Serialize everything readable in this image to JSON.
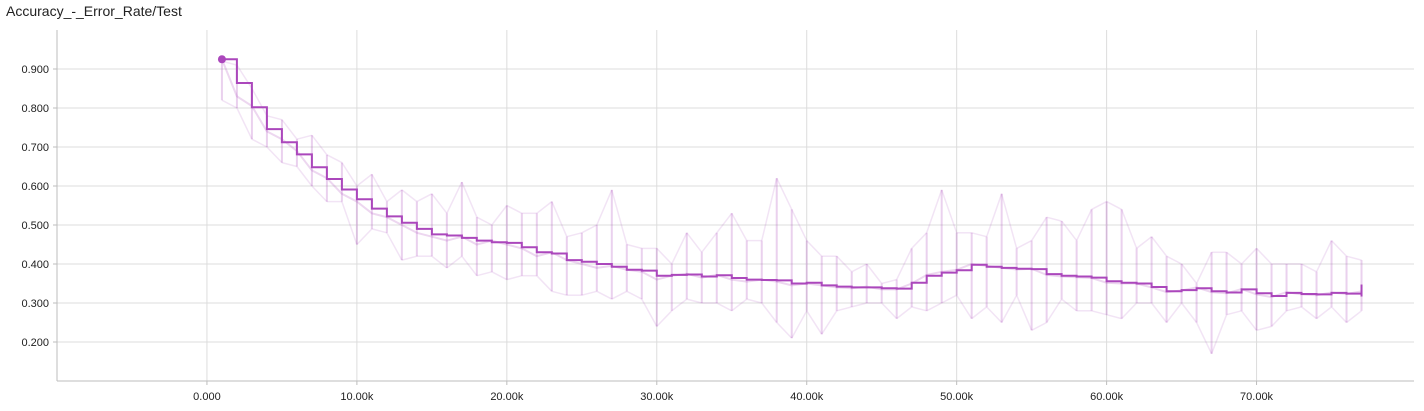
{
  "chart_data": {
    "type": "line",
    "title": "Accuracy_-_Error_Rate/Test",
    "xlim": [
      -10000,
      80500
    ],
    "ylim": [
      0.1,
      1.0
    ],
    "x_ticks": [
      0,
      10000,
      20000,
      30000,
      40000,
      50000,
      60000,
      70000
    ],
    "x_tick_labels": [
      "0.000",
      "10.00k",
      "20.00k",
      "30.00k",
      "40.00k",
      "50.00k",
      "60.00k",
      "70.00k"
    ],
    "y_ticks": [
      0.2,
      0.3,
      0.4,
      0.5,
      0.6,
      0.7,
      0.8,
      0.9
    ],
    "y_tick_labels": [
      "0.200",
      "0.300",
      "0.400",
      "0.500",
      "0.600",
      "0.700",
      "0.800",
      "0.900"
    ],
    "grid": true,
    "colors": {
      "smoothed": "#ab47bc",
      "raw": "#ab47bc",
      "point": "#ab47bc"
    },
    "series": [
      {
        "role": "smoothed",
        "x": [
          1000,
          2000,
          3000,
          4000,
          5000,
          6000,
          7000,
          8000,
          9000,
          10000,
          11000,
          12000,
          13000,
          14000,
          15000,
          16000,
          17000,
          18000,
          19000,
          20000,
          21000,
          22000,
          23000,
          24000,
          25000,
          26000,
          27000,
          28000,
          29000,
          30000,
          31000,
          32000,
          33000,
          34000,
          35000,
          36000,
          37000,
          38000,
          39000,
          40000,
          41000,
          42000,
          43000,
          44000,
          45000,
          46000,
          47000,
          48000,
          49000,
          50000,
          51000,
          52000,
          53000,
          54000,
          55000,
          56000,
          57000,
          58000,
          59000,
          60000,
          61000,
          62000,
          63000,
          64000,
          65000,
          66000,
          67000,
          68000,
          69000,
          70000,
          71000,
          72000,
          73000,
          74000,
          75000,
          76000,
          77000
        ],
        "y": [
          0.925,
          0.864,
          0.802,
          0.746,
          0.712,
          0.681,
          0.648,
          0.618,
          0.591,
          0.566,
          0.542,
          0.522,
          0.506,
          0.49,
          0.476,
          0.473,
          0.467,
          0.46,
          0.456,
          0.454,
          0.443,
          0.43,
          0.427,
          0.41,
          0.406,
          0.4,
          0.393,
          0.385,
          0.383,
          0.37,
          0.372,
          0.373,
          0.368,
          0.371,
          0.364,
          0.36,
          0.359,
          0.358,
          0.35,
          0.352,
          0.345,
          0.342,
          0.34,
          0.34,
          0.338,
          0.337,
          0.352,
          0.37,
          0.378,
          0.384,
          0.398,
          0.393,
          0.39,
          0.388,
          0.387,
          0.374,
          0.37,
          0.368,
          0.365,
          0.356,
          0.352,
          0.35,
          0.341,
          0.33,
          0.333,
          0.338,
          0.33,
          0.327,
          0.335,
          0.325,
          0.318,
          0.326,
          0.323,
          0.322,
          0.326,
          0.324,
          0.332
        ]
      },
      {
        "role": "raw",
        "x": [
          1000,
          2000,
          3000,
          4000,
          5000,
          6000,
          7000,
          8000,
          9000,
          10000,
          11000,
          12000,
          13000,
          14000,
          15000,
          16000,
          17000,
          18000,
          19000,
          20000,
          21000,
          22000,
          23000,
          24000,
          25000,
          26000,
          27000,
          28000,
          29000,
          30000,
          31000,
          32000,
          33000,
          34000,
          35000,
          36000,
          37000,
          38000,
          39000,
          40000,
          41000,
          42000,
          43000,
          44000,
          45000,
          46000,
          47000,
          48000,
          49000,
          50000,
          51000,
          52000,
          53000,
          54000,
          55000,
          56000,
          57000,
          58000,
          59000,
          60000,
          61000,
          62000,
          63000,
          64000,
          65000,
          66000,
          67000,
          68000,
          69000,
          70000,
          71000,
          72000,
          73000,
          74000,
          75000,
          76000,
          77000
        ],
        "y": [
          0.925,
          0.83,
          0.805,
          0.74,
          0.72,
          0.69,
          0.64,
          0.62,
          0.58,
          0.56,
          0.53,
          0.52,
          0.5,
          0.48,
          0.47,
          0.46,
          0.47,
          0.45,
          0.46,
          0.45,
          0.44,
          0.42,
          0.43,
          0.41,
          0.4,
          0.39,
          0.395,
          0.385,
          0.38,
          0.36,
          0.37,
          0.375,
          0.365,
          0.372,
          0.36,
          0.355,
          0.36,
          0.355,
          0.345,
          0.35,
          0.345,
          0.34,
          0.338,
          0.342,
          0.335,
          0.335,
          0.35,
          0.372,
          0.38,
          0.385,
          0.4,
          0.395,
          0.39,
          0.386,
          0.388,
          0.372,
          0.368,
          0.366,
          0.364,
          0.352,
          0.35,
          0.35,
          0.34,
          0.328,
          0.332,
          0.34,
          0.328,
          0.325,
          0.336,
          0.322,
          0.315,
          0.328,
          0.322,
          0.32,
          0.327,
          0.323,
          0.33
        ],
        "y_min": [
          0.82,
          0.8,
          0.72,
          0.7,
          0.66,
          0.65,
          0.6,
          0.56,
          0.56,
          0.45,
          0.49,
          0.48,
          0.41,
          0.42,
          0.42,
          0.39,
          0.42,
          0.37,
          0.38,
          0.36,
          0.37,
          0.37,
          0.33,
          0.32,
          0.32,
          0.33,
          0.31,
          0.33,
          0.31,
          0.24,
          0.28,
          0.31,
          0.3,
          0.3,
          0.28,
          0.31,
          0.3,
          0.25,
          0.21,
          0.28,
          0.22,
          0.28,
          0.29,
          0.3,
          0.3,
          0.26,
          0.29,
          0.28,
          0.3,
          0.32,
          0.26,
          0.29,
          0.25,
          0.32,
          0.23,
          0.25,
          0.31,
          0.28,
          0.28,
          0.27,
          0.26,
          0.3,
          0.3,
          0.25,
          0.3,
          0.25,
          0.17,
          0.27,
          0.28,
          0.23,
          0.24,
          0.28,
          0.29,
          0.26,
          0.29,
          0.25,
          0.28
        ],
        "y_max": [
          0.92,
          0.91,
          0.85,
          0.78,
          0.77,
          0.72,
          0.73,
          0.68,
          0.66,
          0.6,
          0.63,
          0.56,
          0.59,
          0.56,
          0.58,
          0.53,
          0.61,
          0.52,
          0.5,
          0.55,
          0.53,
          0.53,
          0.56,
          0.47,
          0.48,
          0.5,
          0.59,
          0.45,
          0.44,
          0.44,
          0.4,
          0.48,
          0.43,
          0.48,
          0.53,
          0.46,
          0.46,
          0.62,
          0.54,
          0.46,
          0.42,
          0.42,
          0.38,
          0.4,
          0.35,
          0.36,
          0.44,
          0.48,
          0.59,
          0.48,
          0.48,
          0.47,
          0.58,
          0.44,
          0.46,
          0.52,
          0.51,
          0.46,
          0.54,
          0.56,
          0.54,
          0.44,
          0.47,
          0.42,
          0.4,
          0.35,
          0.43,
          0.43,
          0.4,
          0.44,
          0.4,
          0.4,
          0.4,
          0.38,
          0.46,
          0.42,
          0.41
        ]
      }
    ]
  }
}
